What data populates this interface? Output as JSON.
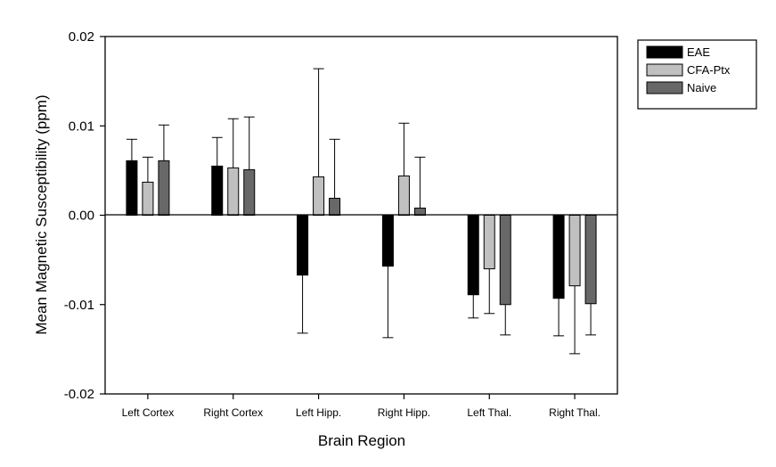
{
  "chart_data": {
    "type": "bar",
    "title": "",
    "xlabel": "Brain Region",
    "ylabel": "Mean Magnetic Susceptibility (ppm)",
    "ylim": [
      -0.02,
      0.02
    ],
    "yticks": [
      0.02,
      0.01,
      0.0,
      -0.01,
      -0.02
    ],
    "ytick_labels": [
      "0.02",
      "0.01",
      "0.00",
      "-0.01",
      "-0.02"
    ],
    "categories": [
      "Left Cortex",
      "Right Cortex",
      "Left Hipp.",
      "Right Hipp.",
      "Left Thal.",
      "Right Thal."
    ],
    "series": [
      {
        "name": "EAE",
        "color": "#000000",
        "values": [
          0.0061,
          0.0055,
          -0.0067,
          -0.0057,
          -0.0089,
          -0.0093
        ],
        "errors": [
          0.0024,
          0.0032,
          0.0065,
          0.008,
          0.0026,
          0.0042
        ]
      },
      {
        "name": "CFA-Ptx",
        "color": "#c0c0c0",
        "values": [
          0.0037,
          0.0053,
          0.0043,
          0.0044,
          -0.006,
          -0.0079
        ],
        "errors": [
          0.0028,
          0.0055,
          0.0121,
          0.0059,
          0.005,
          0.0076
        ]
      },
      {
        "name": "Naive",
        "color": "#686868",
        "values": [
          0.0061,
          0.0051,
          0.0019,
          0.0008,
          -0.01,
          -0.0099
        ],
        "errors": [
          0.004,
          0.0059,
          0.0066,
          0.0057,
          0.0034,
          0.0035
        ]
      }
    ],
    "grid": false,
    "legend_position": "top-right, outside plot"
  }
}
